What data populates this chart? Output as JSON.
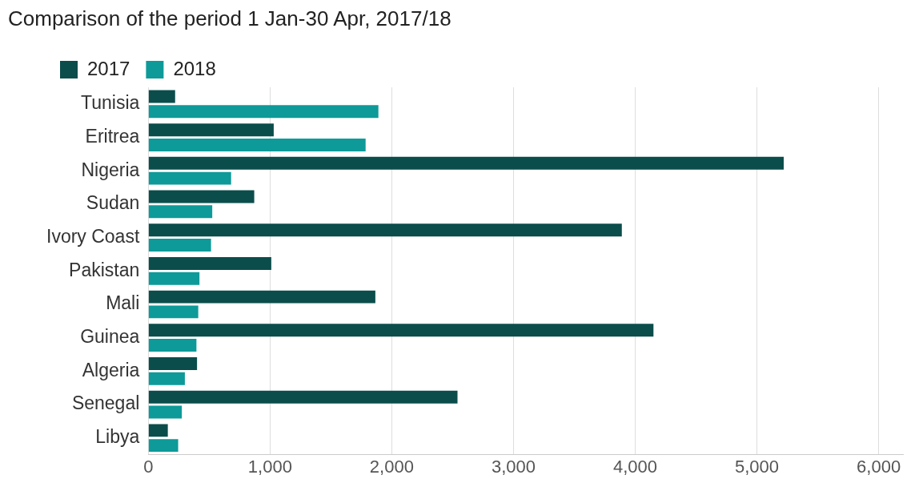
{
  "chart_data": {
    "type": "bar",
    "orientation": "horizontal",
    "title": "Comparison of the period 1 Jan-30 Apr, 2017/18",
    "categories": [
      "Tunisia",
      "Eritrea",
      "Nigeria",
      "Sudan",
      "Ivory Coast",
      "Pakistan",
      "Mali",
      "Guinea",
      "Algeria",
      "Senegal",
      "Libya"
    ],
    "series": [
      {
        "name": "2017",
        "color": "#0b4d4b",
        "values": [
          220,
          1030,
          5220,
          870,
          3890,
          1010,
          1865,
          4150,
          400,
          2540,
          160
        ]
      },
      {
        "name": "2018",
        "color": "#0d9a98",
        "values": [
          1890,
          1785,
          680,
          525,
          515,
          420,
          410,
          395,
          300,
          275,
          245
        ]
      }
    ],
    "xlim": [
      0,
      6200
    ],
    "xticks": [
      {
        "value": 0,
        "label": "0"
      },
      {
        "value": 1000,
        "label": "1,000"
      },
      {
        "value": 2000,
        "label": "2,000"
      },
      {
        "value": 3000,
        "label": "3,000"
      },
      {
        "value": 4000,
        "label": "4,000"
      },
      {
        "value": 5000,
        "label": "5,000"
      },
      {
        "value": 6000,
        "label": "6,000"
      }
    ],
    "grid": "x",
    "legend": "top left"
  }
}
